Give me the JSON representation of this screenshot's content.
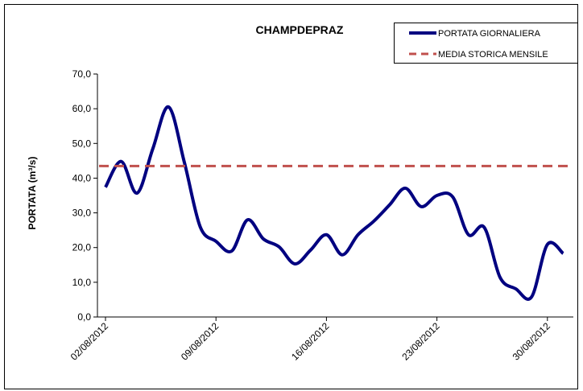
{
  "chart_data": {
    "type": "line",
    "title": "CHAMPDEPRAZ",
    "y_label": "PORTATA (m³/s)",
    "categories": [
      "02/08/2012",
      null,
      null,
      null,
      null,
      null,
      null,
      "09/08/2012",
      null,
      null,
      null,
      null,
      null,
      null,
      "16/08/2012",
      null,
      null,
      null,
      null,
      null,
      null,
      "23/08/2012",
      null,
      null,
      null,
      null,
      null,
      null,
      "30/08/2012",
      null
    ],
    "series": [
      {
        "name": "PORTATA GIORNALIERA",
        "color": "#000080",
        "values": [
          37.4,
          44.8,
          35.7,
          48.5,
          60.5,
          44.5,
          26.0,
          21.8,
          19.0,
          28.0,
          22.5,
          20.2,
          15.3,
          19.3,
          23.7,
          17.9,
          23.7,
          27.6,
          32.3,
          37.1,
          31.8,
          35.0,
          34.6,
          23.7,
          25.8,
          11.4,
          8.1,
          5.8,
          20.9,
          18.3
        ]
      },
      {
        "name": "MEDIA STORICA MENSILE",
        "color": "#c0504d",
        "value": 43.5,
        "dashed": true
      }
    ],
    "ylim": [
      0,
      70
    ],
    "yticks": [
      {
        "value": 0,
        "label": "0,0"
      },
      {
        "value": 10,
        "label": "10,0"
      },
      {
        "value": 20,
        "label": "20,0"
      },
      {
        "value": 30,
        "label": "30,0"
      },
      {
        "value": 40,
        "label": "40,0"
      },
      {
        "value": 50,
        "label": "50,0"
      },
      {
        "value": 60,
        "label": "60,0"
      },
      {
        "value": 70,
        "label": "70,0"
      }
    ],
    "grid": false
  }
}
